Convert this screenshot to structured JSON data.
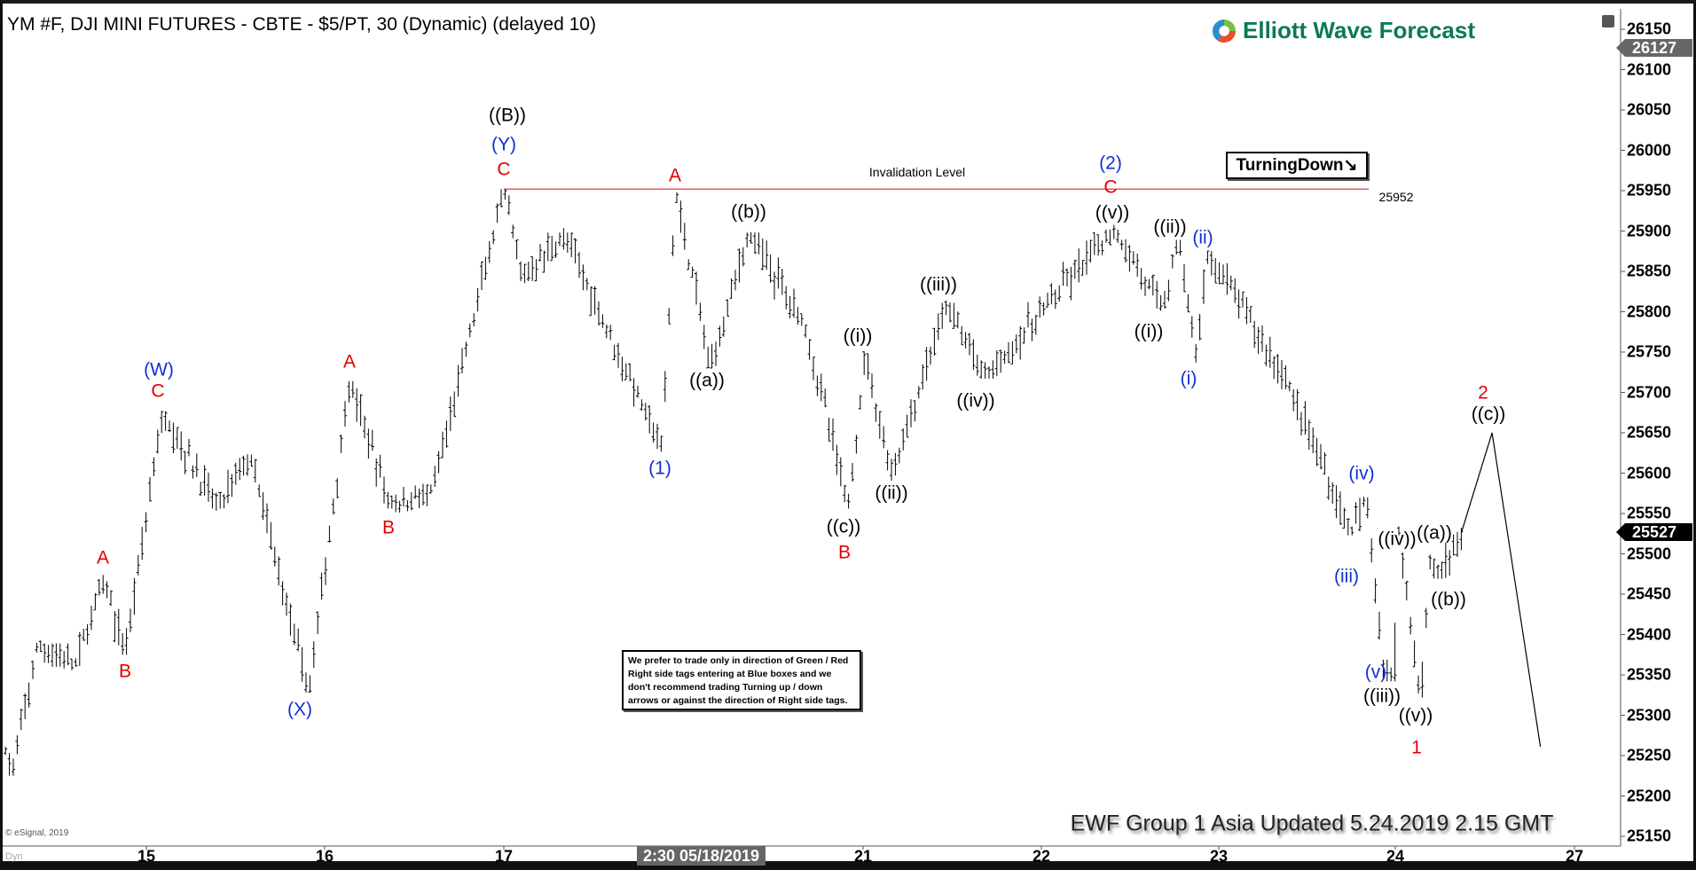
{
  "header": {
    "title": "YM #F, DJI MINI FUTURES - CBTE - $5/PT, 30 (Dynamic) (delayed 10)",
    "logo_text": "Elliott Wave Forecast"
  },
  "chart_data": {
    "type": "ohlc",
    "x_ticks": [
      "15",
      "16",
      "17",
      "20",
      "21",
      "22",
      "23",
      "24",
      "27"
    ],
    "cursor_date_label": "2:30 05/18/2019",
    "y_ticks": [
      26150,
      26100,
      26050,
      26000,
      25950,
      25900,
      25850,
      25800,
      25750,
      25700,
      25650,
      25600,
      25550,
      25500,
      25450,
      25400,
      25350,
      25300,
      25250,
      25200,
      25150
    ],
    "ylim": [
      25150,
      26150
    ],
    "price_tags": [
      {
        "value": "26127",
        "color": "#666666"
      },
      {
        "value": "25527",
        "color": "#000000"
      }
    ],
    "price_path": [
      [
        14.21,
        25261
      ],
      [
        14.25,
        25225
      ],
      [
        14.39,
        25389
      ],
      [
        14.6,
        25360
      ],
      [
        14.76,
        25469
      ],
      [
        14.88,
        25375
      ],
      [
        15.09,
        25677
      ],
      [
        15.4,
        25556
      ],
      [
        15.58,
        25623
      ],
      [
        15.91,
        25328
      ],
      [
        16.14,
        25714
      ],
      [
        16.37,
        25556
      ],
      [
        16.61,
        25583
      ],
      [
        17.01,
        25952
      ],
      [
        17.3,
        25838
      ],
      [
        18.02,
        25898
      ],
      [
        19.67,
        25630
      ],
      [
        19.91,
        25948
      ],
      [
        20.16,
        25730
      ],
      [
        20.37,
        25898
      ],
      [
        20.68,
        25784
      ],
      [
        20.92,
        25556
      ],
      [
        21.01,
        25751
      ],
      [
        21.16,
        25596
      ],
      [
        21.47,
        25811
      ],
      [
        21.68,
        25717
      ],
      [
        22.41,
        25902
      ],
      [
        22.68,
        25804
      ],
      [
        22.78,
        25889
      ],
      [
        22.87,
        25737
      ],
      [
        22.94,
        25875
      ],
      [
        23.41,
        25704
      ],
      [
        23.75,
        25523
      ],
      [
        23.84,
        25570
      ],
      [
        23.93,
        25369
      ],
      [
        23.99,
        25342
      ],
      [
        24.06,
        25529
      ],
      [
        24.42,
        25322
      ],
      [
        24.6,
        25502
      ],
      [
        24.69,
        25469
      ],
      [
        25.11,
        25527
      ]
    ],
    "projection": [
      [
        25.11,
        25527
      ],
      [
        25.62,
        25650
      ],
      [
        26.43,
        25261
      ]
    ],
    "invalidation": {
      "label": "Invalidation Level",
      "value": "25952",
      "price": 25952,
      "color": "#e02020"
    },
    "wave_labels": [
      {
        "text": "A",
        "color": "#e00000"
      },
      {
        "text": "B",
        "color": "#e00000"
      },
      {
        "text": "(W)",
        "color": "#1030d0"
      },
      {
        "text": "C",
        "color": "#e00000"
      },
      {
        "text": "(X)",
        "color": "#1030d0"
      },
      {
        "text": "A",
        "color": "#e00000"
      },
      {
        "text": "B",
        "color": "#e00000"
      },
      {
        "text": "((B))",
        "color": "#000000"
      },
      {
        "text": "(Y)",
        "color": "#1030d0"
      },
      {
        "text": "C",
        "color": "#e00000"
      },
      {
        "text": "A",
        "color": "#e00000"
      },
      {
        "text": "((b))",
        "color": "#000000"
      },
      {
        "text": "(1)",
        "color": "#1030d0"
      },
      {
        "text": "((a))",
        "color": "#000000"
      },
      {
        "text": "((i))",
        "color": "#000000"
      },
      {
        "text": "((c))",
        "color": "#000000"
      },
      {
        "text": "B",
        "color": "#e00000"
      },
      {
        "text": "((ii))",
        "color": "#000000"
      },
      {
        "text": "((iii))",
        "color": "#000000"
      },
      {
        "text": "((iv))",
        "color": "#000000"
      },
      {
        "text": "(2)",
        "color": "#1030d0"
      },
      {
        "text": "C",
        "color": "#e00000"
      },
      {
        "text": "((v))",
        "color": "#000000"
      },
      {
        "text": "((ii))",
        "color": "#000000"
      },
      {
        "text": "(ii)",
        "color": "#1030d0"
      },
      {
        "text": "((i))",
        "color": "#000000"
      },
      {
        "text": "(i)",
        "color": "#1030d0"
      },
      {
        "text": "(iv)",
        "color": "#1030d0"
      },
      {
        "text": "(iii)",
        "color": "#1030d0"
      },
      {
        "text": "((iv))",
        "color": "#000000"
      },
      {
        "text": "((a))",
        "color": "#000000"
      },
      {
        "text": "((b))",
        "color": "#000000"
      },
      {
        "text": "(v)",
        "color": "#1030d0"
      },
      {
        "text": "((iii))",
        "color": "#000000"
      },
      {
        "text": "((v))",
        "color": "#000000"
      },
      {
        "text": "1",
        "color": "#e00000"
      },
      {
        "text": "2",
        "color": "#e00000"
      },
      {
        "text": "((c))",
        "color": "#000000"
      }
    ]
  },
  "tags": {
    "turning": "TurningDown",
    "turning_icon": "arrow-down-right-icon"
  },
  "note": "We prefer to trade only in direction of Green / Red Right side tags entering at Blue boxes and we don't recommend trading Turning up / down arrows or against the direction of Right side tags.",
  "watermark": "EWF Group 1 Asia Updated 5.24.2019 2.15 GMT",
  "footer": {
    "copyright": "© eSignal, 2019",
    "mode": "Dyn"
  }
}
